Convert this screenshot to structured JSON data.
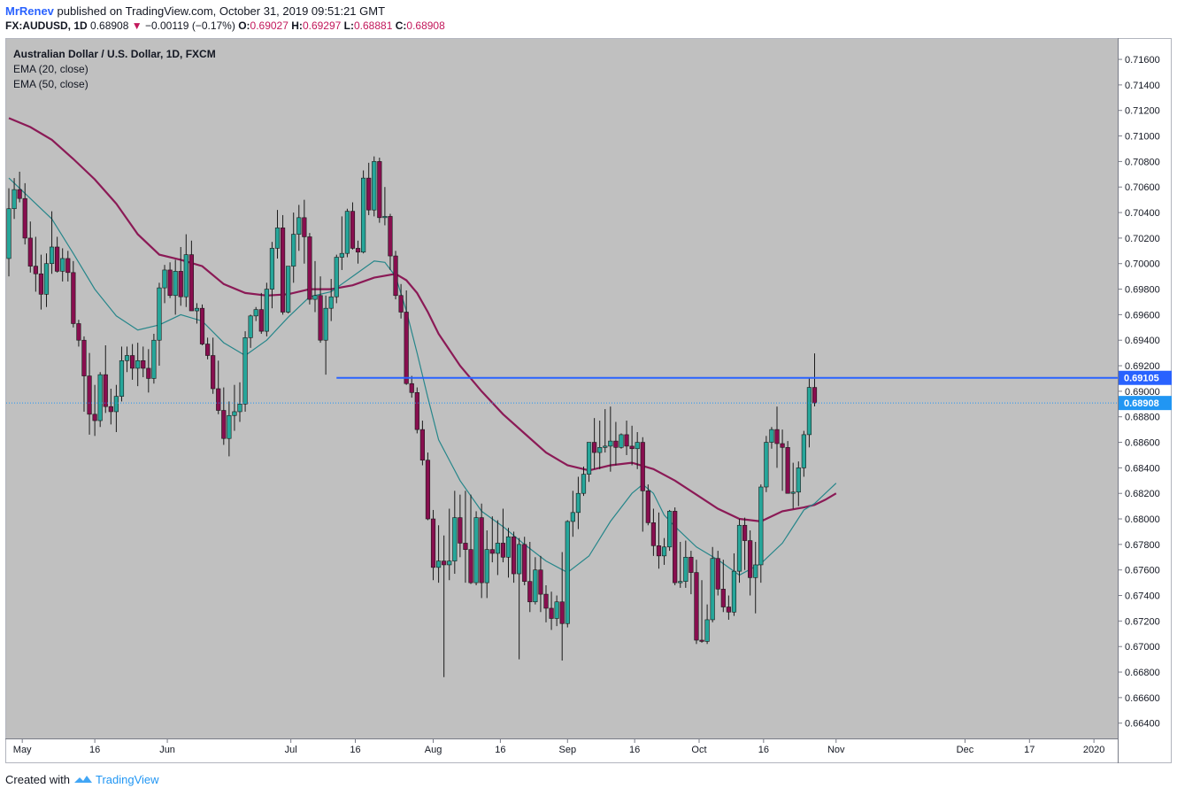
{
  "header": {
    "author": "MrRenev",
    "published": "published on TradingView.com, October 31, 2019 09:51:21 GMT",
    "symbol": "FX:AUDUSD, 1D",
    "last": "0.68908",
    "arrow": "▼",
    "change": "−0.00119 (−0.17%)",
    "open_label": "O:",
    "open": "0.69027",
    "high_label": "H:",
    "high": "0.69297",
    "low_label": "L:",
    "low": "0.68881",
    "close_label": "C:",
    "close": "0.68908"
  },
  "legend": {
    "title": "Australian Dollar / U.S. Dollar, 1D, FXCM",
    "ema20": "EMA (20, close)",
    "ema50": "EMA (50, close)"
  },
  "footer": {
    "created_with": "Created with",
    "brand": "TradingView"
  },
  "colors": {
    "background": "#c0c0c0",
    "up": "#26a69a",
    "down": "#880e4f",
    "ema20": "#26868a",
    "ema50": "#8b1a56",
    "level_line": "#2962ff",
    "current_line": "#2196f3"
  },
  "chart_data": {
    "type": "candlestick",
    "title": "Australian Dollar / U.S. Dollar, 1D, FXCM",
    "x_ticks": [
      "May",
      "16",
      "Jun",
      "Jul",
      "16",
      "Aug",
      "16",
      "Sep",
      "16",
      "Oct",
      "16",
      "Nov",
      "Dec",
      "17",
      "2020"
    ],
    "ylim": [
      0.6628,
      0.7176
    ],
    "y_ticks": [
      "0.71600",
      "0.71400",
      "0.71200",
      "0.71000",
      "0.70800",
      "0.70600",
      "0.70400",
      "0.70200",
      "0.70000",
      "0.69800",
      "0.69600",
      "0.69400",
      "0.69200",
      "0.69000",
      "0.68800",
      "0.68600",
      "0.68400",
      "0.68200",
      "0.68000",
      "0.67800",
      "0.67600",
      "0.67400",
      "0.67200",
      "0.67000",
      "0.66800",
      "0.66600",
      "0.66400"
    ],
    "horizontal_level": {
      "value": 0.69105,
      "label": "0.69105"
    },
    "current_price": {
      "value": 0.68908,
      "label": "0.68908"
    },
    "candles": [
      [
        0.7004,
        0.7059,
        0.699,
        0.7043
      ],
      [
        0.7043,
        0.7067,
        0.7035,
        0.7058
      ],
      [
        0.7058,
        0.7072,
        0.7048,
        0.7051
      ],
      [
        0.7051,
        0.7063,
        0.7015,
        0.702
      ],
      [
        0.702,
        0.7033,
        0.6993,
        0.6998
      ],
      [
        0.6998,
        0.7021,
        0.6978,
        0.6992
      ],
      [
        0.6992,
        0.7007,
        0.6964,
        0.6976
      ],
      [
        0.6976,
        0.7008,
        0.6966,
        0.7
      ],
      [
        0.7,
        0.7041,
        0.6992,
        0.7013
      ],
      [
        0.7013,
        0.7021,
        0.6993,
        0.6994
      ],
      [
        0.6994,
        0.7012,
        0.6986,
        0.7004
      ],
      [
        0.7004,
        0.701,
        0.6986,
        0.6993
      ],
      [
        0.6993,
        0.7002,
        0.695,
        0.6953
      ],
      [
        0.6953,
        0.6956,
        0.6935,
        0.694
      ],
      [
        0.694,
        0.6943,
        0.6884,
        0.6912
      ],
      [
        0.6912,
        0.693,
        0.6866,
        0.6882
      ],
      [
        0.6882,
        0.6905,
        0.6865,
        0.6877
      ],
      [
        0.6877,
        0.6915,
        0.6872,
        0.6913
      ],
      [
        0.6913,
        0.6936,
        0.6883,
        0.6888
      ],
      [
        0.6888,
        0.6902,
        0.6874,
        0.6884
      ],
      [
        0.6884,
        0.6905,
        0.6868,
        0.6896
      ],
      [
        0.6896,
        0.6935,
        0.6892,
        0.6924
      ],
      [
        0.6924,
        0.6935,
        0.6915,
        0.6928
      ],
      [
        0.6928,
        0.6937,
        0.6909,
        0.6918
      ],
      [
        0.6918,
        0.6938,
        0.6904,
        0.6924
      ],
      [
        0.6924,
        0.6935,
        0.6911,
        0.6918
      ],
      [
        0.6918,
        0.6933,
        0.6899,
        0.691
      ],
      [
        0.691,
        0.6945,
        0.6906,
        0.694
      ],
      [
        0.694,
        0.6985,
        0.692,
        0.6981
      ],
      [
        0.6981,
        0.6999,
        0.6969,
        0.6995
      ],
      [
        0.6995,
        0.7001,
        0.6973,
        0.6975
      ],
      [
        0.6975,
        0.7003,
        0.696,
        0.6994
      ],
      [
        0.6994,
        0.7013,
        0.6967,
        0.6974
      ],
      [
        0.6974,
        0.7023,
        0.6966,
        0.7007
      ],
      [
        0.7007,
        0.7018,
        0.6963,
        0.6963
      ],
      [
        0.6963,
        0.6969,
        0.6953,
        0.6965
      ],
      [
        0.6965,
        0.6968,
        0.6936,
        0.6937
      ],
      [
        0.6937,
        0.6942,
        0.6925,
        0.6928
      ],
      [
        0.6928,
        0.6942,
        0.6898,
        0.6902
      ],
      [
        0.6902,
        0.6924,
        0.6882,
        0.6885
      ],
      [
        0.6885,
        0.6903,
        0.6858,
        0.6863
      ],
      [
        0.6863,
        0.6892,
        0.6849,
        0.6881
      ],
      [
        0.6881,
        0.6905,
        0.6869,
        0.6884
      ],
      [
        0.6884,
        0.6907,
        0.6876,
        0.689
      ],
      [
        0.689,
        0.6947,
        0.6884,
        0.6942
      ],
      [
        0.6942,
        0.696,
        0.6934,
        0.6959
      ],
      [
        0.6959,
        0.6966,
        0.6955,
        0.6964
      ],
      [
        0.6964,
        0.6977,
        0.6945,
        0.6947
      ],
      [
        0.6947,
        0.6985,
        0.6943,
        0.698
      ],
      [
        0.698,
        0.7017,
        0.6965,
        0.7012
      ],
      [
        0.7012,
        0.7042,
        0.7004,
        0.7028
      ],
      [
        0.7028,
        0.7038,
        0.696,
        0.6962
      ],
      [
        0.6962,
        0.6998,
        0.6961,
        0.6998
      ],
      [
        0.6998,
        0.704,
        0.6985,
        0.7023
      ],
      [
        0.7023,
        0.7046,
        0.701,
        0.7036
      ],
      [
        0.7036,
        0.705,
        0.7,
        0.7021
      ],
      [
        0.7021,
        0.7024,
        0.6968,
        0.6972
      ],
      [
        0.6972,
        0.7002,
        0.6962,
        0.6975
      ],
      [
        0.6975,
        0.699,
        0.6938,
        0.694
      ],
      [
        0.694,
        0.6975,
        0.6913,
        0.6965
      ],
      [
        0.6965,
        0.6988,
        0.6955,
        0.6974
      ],
      [
        0.6974,
        0.7007,
        0.6969,
        0.7005
      ],
      [
        0.7005,
        0.7037,
        0.6995,
        0.7008
      ],
      [
        0.7008,
        0.7043,
        0.7005,
        0.7041
      ],
      [
        0.7041,
        0.7048,
        0.7011,
        0.7012
      ],
      [
        0.7012,
        0.7018,
        0.7,
        0.7009
      ],
      [
        0.7009,
        0.7073,
        0.7008,
        0.7067
      ],
      [
        0.7067,
        0.7079,
        0.7038,
        0.7042
      ],
      [
        0.7042,
        0.7084,
        0.7037,
        0.708
      ],
      [
        0.708,
        0.7083,
        0.7032,
        0.7036
      ],
      [
        0.7036,
        0.706,
        0.703,
        0.7037
      ],
      [
        0.7037,
        0.7039,
        0.6995,
        0.7006
      ],
      [
        0.7006,
        0.701,
        0.6972,
        0.6975
      ],
      [
        0.6975,
        0.6984,
        0.6957,
        0.6962
      ],
      [
        0.6962,
        0.6979,
        0.6905,
        0.6906
      ],
      [
        0.6906,
        0.6912,
        0.6895,
        0.6899
      ],
      [
        0.6899,
        0.6903,
        0.6867,
        0.687
      ],
      [
        0.687,
        0.6877,
        0.6842,
        0.6846
      ],
      [
        0.6846,
        0.6852,
        0.6799,
        0.68
      ],
      [
        0.68,
        0.6807,
        0.6752,
        0.6762
      ],
      [
        0.6762,
        0.6795,
        0.675,
        0.6767
      ],
      [
        0.6767,
        0.6787,
        0.6676,
        0.6764
      ],
      [
        0.6764,
        0.6808,
        0.6752,
        0.6767
      ],
      [
        0.6767,
        0.6822,
        0.6757,
        0.6801
      ],
      [
        0.6801,
        0.6819,
        0.677,
        0.6781
      ],
      [
        0.6781,
        0.6822,
        0.675,
        0.6776
      ],
      [
        0.6776,
        0.6819,
        0.6749,
        0.675
      ],
      [
        0.675,
        0.6806,
        0.6748,
        0.6801
      ],
      [
        0.6801,
        0.6812,
        0.6738,
        0.675
      ],
      [
        0.675,
        0.6791,
        0.6738,
        0.6776
      ],
      [
        0.6776,
        0.6802,
        0.6766,
        0.6773
      ],
      [
        0.6773,
        0.6799,
        0.6756,
        0.6781
      ],
      [
        0.6781,
        0.6808,
        0.6766,
        0.677
      ],
      [
        0.677,
        0.6793,
        0.6754,
        0.6786
      ],
      [
        0.6786,
        0.679,
        0.675,
        0.6757
      ],
      [
        0.6757,
        0.6785,
        0.669,
        0.678
      ],
      [
        0.678,
        0.6786,
        0.6748,
        0.6751
      ],
      [
        0.6751,
        0.6782,
        0.6727,
        0.6735
      ],
      [
        0.6735,
        0.677,
        0.6733,
        0.676
      ],
      [
        0.676,
        0.6771,
        0.6727,
        0.6741
      ],
      [
        0.6741,
        0.6748,
        0.6719,
        0.673
      ],
      [
        0.673,
        0.6743,
        0.6713,
        0.6722
      ],
      [
        0.6722,
        0.674,
        0.6716,
        0.6735
      ],
      [
        0.6735,
        0.6774,
        0.6689,
        0.6718
      ],
      [
        0.6718,
        0.6799,
        0.6715,
        0.6798
      ],
      [
        0.6798,
        0.6822,
        0.6786,
        0.6805
      ],
      [
        0.6805,
        0.6833,
        0.6792,
        0.682
      ],
      [
        0.682,
        0.6841,
        0.6818,
        0.6835
      ],
      [
        0.6835,
        0.686,
        0.6829,
        0.686
      ],
      [
        0.686,
        0.6879,
        0.6839,
        0.6852
      ],
      [
        0.6852,
        0.6877,
        0.6839,
        0.6856
      ],
      [
        0.6856,
        0.6886,
        0.6852,
        0.6857
      ],
      [
        0.6857,
        0.6888,
        0.6837,
        0.6861
      ],
      [
        0.6861,
        0.6876,
        0.6842,
        0.6856
      ],
      [
        0.6856,
        0.6867,
        0.6855,
        0.6866
      ],
      [
        0.6866,
        0.6877,
        0.685,
        0.6857
      ],
      [
        0.6857,
        0.6873,
        0.6842,
        0.6855
      ],
      [
        0.6855,
        0.6868,
        0.6839,
        0.686
      ],
      [
        0.686,
        0.6864,
        0.679,
        0.6822
      ],
      [
        0.6822,
        0.6827,
        0.6795,
        0.6797
      ],
      [
        0.6797,
        0.6808,
        0.6771,
        0.6779
      ],
      [
        0.6779,
        0.6805,
        0.6761,
        0.6771
      ],
      [
        0.6771,
        0.6785,
        0.6764,
        0.6778
      ],
      [
        0.6778,
        0.6807,
        0.6775,
        0.6806
      ],
      [
        0.6806,
        0.6809,
        0.6748,
        0.675
      ],
      [
        0.675,
        0.6782,
        0.6746,
        0.6751
      ],
      [
        0.6751,
        0.6783,
        0.6746,
        0.677
      ],
      [
        0.677,
        0.6775,
        0.6741,
        0.6758
      ],
      [
        0.6758,
        0.6768,
        0.6702,
        0.6705
      ],
      [
        0.6705,
        0.6752,
        0.6703,
        0.6704
      ],
      [
        0.6704,
        0.6733,
        0.6702,
        0.6721
      ],
      [
        0.6721,
        0.6778,
        0.6719,
        0.6769
      ],
      [
        0.6769,
        0.6775,
        0.674,
        0.6745
      ],
      [
        0.6745,
        0.6768,
        0.6727,
        0.6731
      ],
      [
        0.6731,
        0.674,
        0.6721,
        0.6727
      ],
      [
        0.6727,
        0.6773,
        0.6724,
        0.6759
      ],
      [
        0.6759,
        0.68,
        0.675,
        0.6795
      ],
      [
        0.6795,
        0.6801,
        0.676,
        0.6783
      ],
      [
        0.6783,
        0.6791,
        0.674,
        0.6754
      ],
      [
        0.6754,
        0.6782,
        0.6726,
        0.6764
      ],
      [
        0.6764,
        0.6827,
        0.675,
        0.6825
      ],
      [
        0.6825,
        0.6865,
        0.6821,
        0.686
      ],
      [
        0.686,
        0.6872,
        0.6855,
        0.687
      ],
      [
        0.687,
        0.6888,
        0.684,
        0.6859
      ],
      [
        0.6859,
        0.687,
        0.6822,
        0.6856
      ],
      [
        0.6856,
        0.6861,
        0.682,
        0.682
      ],
      [
        0.682,
        0.6844,
        0.6808,
        0.6821
      ],
      [
        0.6821,
        0.6845,
        0.681,
        0.684
      ],
      [
        0.684,
        0.6869,
        0.6833,
        0.6866
      ],
      [
        0.6866,
        0.691,
        0.6856,
        0.6903
      ],
      [
        0.6903,
        0.69297,
        0.68881,
        0.68908
      ]
    ],
    "ema20": [
      [
        0,
        0.7067
      ],
      [
        4,
        0.7051
      ],
      [
        8,
        0.7035
      ],
      [
        12,
        0.7008
      ],
      [
        16,
        0.698
      ],
      [
        20,
        0.6959
      ],
      [
        24,
        0.6948
      ],
      [
        28,
        0.6952
      ],
      [
        32,
        0.696
      ],
      [
        36,
        0.6955
      ],
      [
        40,
        0.6938
      ],
      [
        44,
        0.6928
      ],
      [
        48,
        0.694
      ],
      [
        52,
        0.6958
      ],
      [
        56,
        0.6974
      ],
      [
        60,
        0.6978
      ],
      [
        64,
        0.699
      ],
      [
        68,
        0.7002
      ],
      [
        70,
        0.7001
      ],
      [
        72,
        0.699
      ],
      [
        74,
        0.6963
      ],
      [
        76,
        0.693
      ],
      [
        78,
        0.6895
      ],
      [
        80,
        0.6862
      ],
      [
        84,
        0.683
      ],
      [
        88,
        0.6806
      ],
      [
        92,
        0.6794
      ],
      [
        96,
        0.678
      ],
      [
        100,
        0.6767
      ],
      [
        104,
        0.6758
      ],
      [
        108,
        0.6771
      ],
      [
        112,
        0.6798
      ],
      [
        116,
        0.682
      ],
      [
        118,
        0.6827
      ],
      [
        120,
        0.682
      ],
      [
        122,
        0.6803
      ],
      [
        124,
        0.6794
      ],
      [
        128,
        0.6778
      ],
      [
        132,
        0.6768
      ],
      [
        136,
        0.6756
      ],
      [
        140,
        0.6765
      ],
      [
        144,
        0.6781
      ],
      [
        148,
        0.6807
      ],
      [
        150,
        0.6812
      ],
      [
        152,
        0.682
      ],
      [
        154,
        0.6828
      ]
    ],
    "ema50": [
      [
        0,
        0.7114
      ],
      [
        4,
        0.7107
      ],
      [
        8,
        0.7097
      ],
      [
        12,
        0.7082
      ],
      [
        16,
        0.7066
      ],
      [
        20,
        0.7047
      ],
      [
        24,
        0.7023
      ],
      [
        28,
        0.7007
      ],
      [
        32,
        0.7003
      ],
      [
        36,
        0.6998
      ],
      [
        40,
        0.6984
      ],
      [
        44,
        0.6977
      ],
      [
        48,
        0.6975
      ],
      [
        52,
        0.6976
      ],
      [
        56,
        0.698
      ],
      [
        60,
        0.698
      ],
      [
        64,
        0.6983
      ],
      [
        68,
        0.6989
      ],
      [
        72,
        0.6992
      ],
      [
        74,
        0.6987
      ],
      [
        76,
        0.6977
      ],
      [
        78,
        0.6962
      ],
      [
        80,
        0.6945
      ],
      [
        84,
        0.692
      ],
      [
        88,
        0.69
      ],
      [
        92,
        0.6882
      ],
      [
        96,
        0.6867
      ],
      [
        100,
        0.6852
      ],
      [
        104,
        0.6842
      ],
      [
        108,
        0.6838
      ],
      [
        112,
        0.6842
      ],
      [
        116,
        0.6844
      ],
      [
        120,
        0.6839
      ],
      [
        124,
        0.683
      ],
      [
        128,
        0.6819
      ],
      [
        132,
        0.6808
      ],
      [
        136,
        0.68
      ],
      [
        140,
        0.6798
      ],
      [
        144,
        0.6806
      ],
      [
        148,
        0.6809
      ],
      [
        150,
        0.6811
      ],
      [
        152,
        0.6815
      ],
      [
        154,
        0.682
      ]
    ],
    "grid": false,
    "legend_position": "top-left"
  }
}
